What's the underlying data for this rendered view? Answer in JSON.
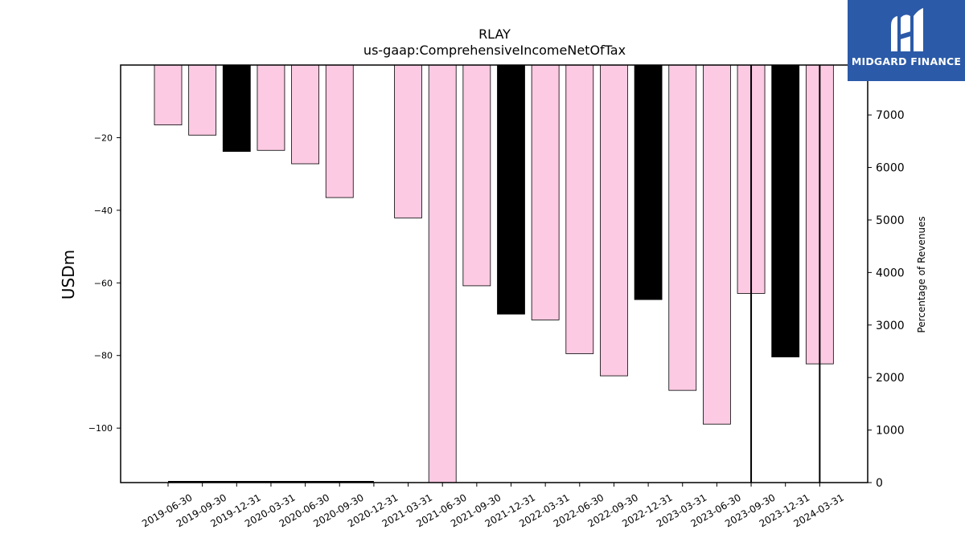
{
  "brand": {
    "name": "MIDGARD FINANCE",
    "bg_color": "#2b5aa8"
  },
  "chart_data": {
    "type": "bar",
    "title": "RLAY",
    "subtitle": "us-gaap:ComprehensiveIncomeNetOfTax",
    "ylabel": "USDm",
    "y2label": "Percentage of Revenues",
    "categories": [
      "2019-06-30",
      "2019-09-30",
      "2019-12-31",
      "2020-03-31",
      "2020-06-30",
      "2020-09-30",
      "2020-12-31",
      "2021-03-31",
      "2021-06-30",
      "2021-09-30",
      "2021-12-31",
      "2022-03-31",
      "2022-06-30",
      "2022-09-30",
      "2022-12-31",
      "2023-03-31",
      "2023-06-30",
      "2023-09-30",
      "2023-12-31",
      "2024-03-31"
    ],
    "values": [
      -16.5,
      -19.3,
      -23.8,
      -23.5,
      -27.2,
      -36.5,
      null,
      -42.1,
      -116.0,
      -60.8,
      -68.6,
      -70.2,
      -79.5,
      -85.6,
      -64.6,
      -89.6,
      -98.9,
      -62.9,
      -80.4,
      -82.3
    ],
    "bar_colors": [
      "#fccae3",
      "#fccae3",
      "#000000",
      "#fccae3",
      "#fccae3",
      "#fccae3",
      null,
      "#fccae3",
      "#fccae3",
      "#fccae3",
      "#000000",
      "#fccae3",
      "#fccae3",
      "#fccae3",
      "#000000",
      "#fccae3",
      "#fccae3",
      "#fccae3",
      "#000000",
      "#fccae3"
    ],
    "ylim": [
      -115,
      0
    ],
    "yticks": [
      -20,
      -40,
      -60,
      -80,
      -100
    ],
    "y2lim": [
      0,
      7950
    ],
    "y2ticks": [
      0,
      1000,
      2000,
      3000,
      4000,
      5000,
      6000,
      7000
    ],
    "percent_of_revenues": {
      "x": [
        "2019-06-30",
        "2019-09-30",
        "2019-12-31",
        "2020-03-31",
        "2020-06-30",
        "2020-09-30",
        "2020-12-31",
        "2023-09-30",
        "2023-09-30",
        "2024-03-31",
        "2024-03-31"
      ],
      "y": [
        0,
        0,
        0,
        0,
        0,
        0,
        0,
        0,
        7950,
        0,
        7950
      ],
      "segments": [
        {
          "from": "2019-06-30",
          "to": "2020-12-31",
          "y": 0
        },
        {
          "at": "2023-09-30",
          "from_y": 0,
          "to_y": 7950
        },
        {
          "at": "2024-03-31",
          "from_y": 0,
          "to_y": 7950
        }
      ],
      "color": "#000000"
    },
    "grid": false,
    "legend": "none"
  }
}
